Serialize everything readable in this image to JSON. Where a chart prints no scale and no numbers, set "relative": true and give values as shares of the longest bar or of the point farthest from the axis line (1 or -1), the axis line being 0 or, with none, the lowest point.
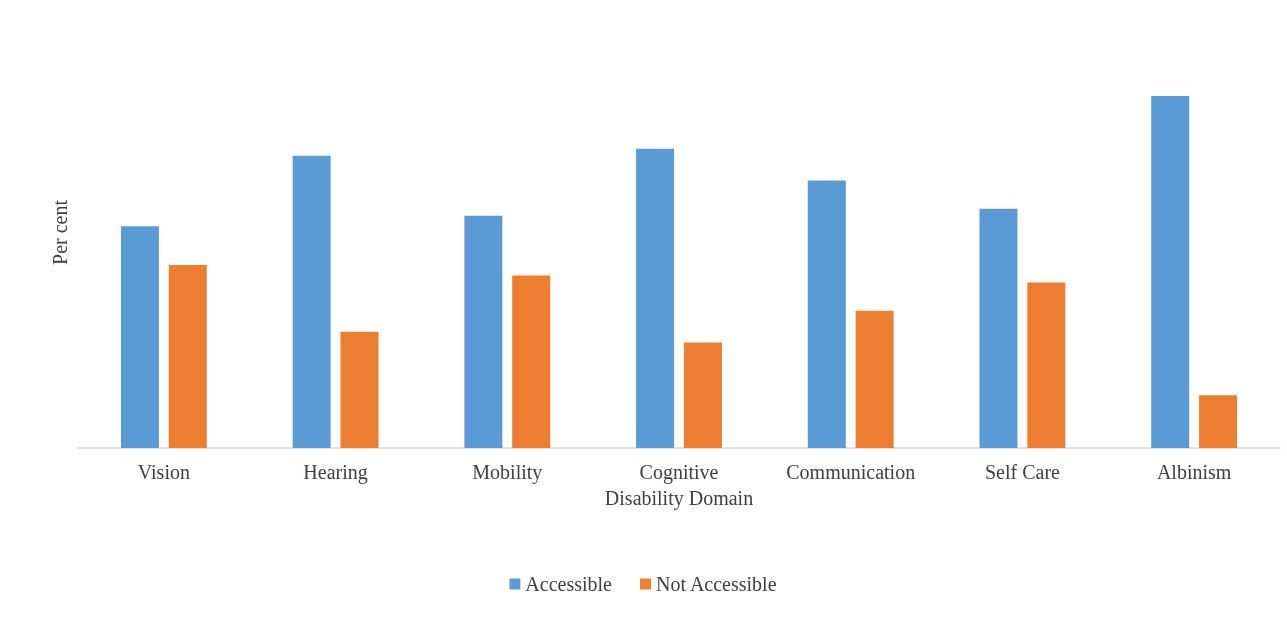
{
  "chart_data": {
    "type": "bar",
    "relative": true,
    "xlabel": "Disability Domain",
    "ylabel": "Per cent",
    "legend": "bottom",
    "categories": [
      "Vision",
      "Hearing",
      "Mobility",
      "Cognitive",
      "Communication",
      "Self Care",
      "Albinism"
    ],
    "series": [
      {
        "name": "Accessible",
        "color": "#5b9bd5",
        "values": [
          0.63,
          0.83,
          0.66,
          0.85,
          0.76,
          0.68,
          1
        ]
      },
      {
        "name": "Not Accessible",
        "color": "#ed7d31",
        "values": [
          0.52,
          0.33,
          0.49,
          0.3,
          0.39,
          0.47,
          0.15
        ]
      }
    ]
  }
}
